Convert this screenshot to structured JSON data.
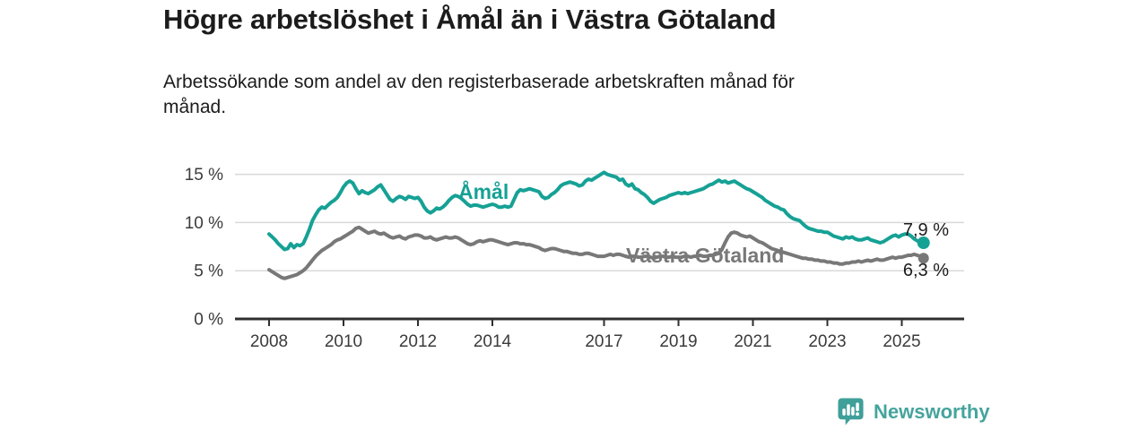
{
  "header": {
    "title": "Högre arbetslöshet i Åmål än i Västra Götaland",
    "subtitle": "Arbetssökande som andel av den registerbaserade arbetskraften månad för månad."
  },
  "footer": {
    "brand": "Newsworthy"
  },
  "colors": {
    "accent_teal": "#16a195",
    "series_gray": "#787878",
    "grid": "#d9d9d9",
    "axis": "#2f2f2f",
    "axis_text": "#3b3b3b",
    "text_dark": "#1c1c1c",
    "logo_teal": "#45a49d",
    "logo_icon": "#3f9f99"
  },
  "chart_data": {
    "type": "line",
    "title": "Högre arbetslöshet i Åmål än i Västra Götaland",
    "subtitle": "Arbetssökande som andel av den registerbaserade arbetskraften månad för månad.",
    "unit": "%",
    "frequency": "monthly",
    "x_start": "2008-01",
    "x_end": "2025-08",
    "x_ticks": [
      2008,
      2010,
      2012,
      2014,
      2017,
      2019,
      2021,
      2023,
      2025
    ],
    "y_ticks": [
      {
        "value": 0,
        "label": "0 %"
      },
      {
        "value": 5,
        "label": "5 %"
      },
      {
        "value": 10,
        "label": "10 %"
      },
      {
        "value": 15,
        "label": "15 %"
      }
    ],
    "ylim": [
      0,
      16
    ],
    "grid": "horizontal",
    "legend_position": "inline-labels",
    "series": [
      {
        "id": "amal",
        "name": "Åmål",
        "color": "#16a195",
        "end_label": "7,9 %",
        "end_value": 7.9,
        "values": [
          8.8,
          8.5,
          8.2,
          7.8,
          7.5,
          7.2,
          7.3,
          7.8,
          7.4,
          7.7,
          7.6,
          7.8,
          8.5,
          9.3,
          10.2,
          10.8,
          11.3,
          11.6,
          11.5,
          11.8,
          12.1,
          12.3,
          12.6,
          13.1,
          13.7,
          14.1,
          14.3,
          14.1,
          13.5,
          13.0,
          13.3,
          13.1,
          13.0,
          13.2,
          13.4,
          13.7,
          13.9,
          13.4,
          12.9,
          12.4,
          12.2,
          12.5,
          12.7,
          12.6,
          12.4,
          12.7,
          12.6,
          12.5,
          12.6,
          12.2,
          11.6,
          11.2,
          11.0,
          11.2,
          11.5,
          11.4,
          11.6,
          11.9,
          12.3,
          12.6,
          12.8,
          12.7,
          12.5,
          12.2,
          11.9,
          11.7,
          11.8,
          11.8,
          11.7,
          11.6,
          11.7,
          11.8,
          11.9,
          11.8,
          11.6,
          11.6,
          11.7,
          11.6,
          11.7,
          12.4,
          13.1,
          13.4,
          13.3,
          13.4,
          13.5,
          13.4,
          13.3,
          13.2,
          12.7,
          12.5,
          12.6,
          12.9,
          13.1,
          13.4,
          13.8,
          14.0,
          14.1,
          14.2,
          14.1,
          14.0,
          13.8,
          13.9,
          14.3,
          14.5,
          14.4,
          14.6,
          14.8,
          15.0,
          15.2,
          15.0,
          14.9,
          14.8,
          14.7,
          14.4,
          14.5,
          14.0,
          13.8,
          14.0,
          13.5,
          13.4,
          13.1,
          12.9,
          12.6,
          12.2,
          12.0,
          12.2,
          12.4,
          12.5,
          12.6,
          12.8,
          12.9,
          13.0,
          13.1,
          13.0,
          13.1,
          13.0,
          13.1,
          13.2,
          13.3,
          13.4,
          13.5,
          13.7,
          13.9,
          14.0,
          14.2,
          14.4,
          14.2,
          14.3,
          14.1,
          14.2,
          14.3,
          14.1,
          13.9,
          13.7,
          13.5,
          13.4,
          13.2,
          13.0,
          12.8,
          12.6,
          12.3,
          12.1,
          11.9,
          11.7,
          11.6,
          11.4,
          11.3,
          10.9,
          10.6,
          10.4,
          10.3,
          10.2,
          9.9,
          9.6,
          9.4,
          9.3,
          9.2,
          9.1,
          9.1,
          9.0,
          9.0,
          8.8,
          8.6,
          8.5,
          8.4,
          8.3,
          8.5,
          8.4,
          8.5,
          8.3,
          8.2,
          8.2,
          8.3,
          8.4,
          8.2,
          8.1,
          8.0,
          7.9,
          8.0,
          8.2,
          8.4,
          8.6,
          8.7,
          8.5,
          8.7,
          8.8,
          8.8,
          8.6,
          8.3,
          8.1,
          8.0,
          7.9
        ]
      },
      {
        "id": "vastra_gotaland",
        "name": "Västra Götaland",
        "color": "#787878",
        "end_label": "6,3 %",
        "end_value": 6.3,
        "values": [
          5.1,
          4.9,
          4.7,
          4.5,
          4.3,
          4.2,
          4.3,
          4.4,
          4.5,
          4.6,
          4.8,
          5.0,
          5.3,
          5.7,
          6.1,
          6.5,
          6.8,
          7.1,
          7.3,
          7.5,
          7.7,
          8.0,
          8.2,
          8.3,
          8.5,
          8.7,
          8.9,
          9.1,
          9.4,
          9.5,
          9.3,
          9.1,
          8.9,
          9.0,
          9.1,
          8.9,
          8.8,
          8.9,
          8.7,
          8.5,
          8.4,
          8.5,
          8.6,
          8.4,
          8.3,
          8.5,
          8.6,
          8.7,
          8.7,
          8.6,
          8.4,
          8.4,
          8.5,
          8.3,
          8.2,
          8.3,
          8.4,
          8.5,
          8.4,
          8.4,
          8.5,
          8.4,
          8.2,
          8.0,
          7.8,
          7.7,
          7.8,
          8.0,
          8.1,
          8.0,
          8.1,
          8.2,
          8.2,
          8.1,
          8.0,
          7.9,
          7.8,
          7.7,
          7.8,
          7.9,
          7.9,
          7.8,
          7.8,
          7.7,
          7.7,
          7.6,
          7.5,
          7.4,
          7.2,
          7.1,
          7.2,
          7.3,
          7.3,
          7.2,
          7.1,
          7.0,
          7.0,
          6.9,
          6.8,
          6.8,
          6.7,
          6.7,
          6.8,
          6.8,
          6.7,
          6.6,
          6.5,
          6.5,
          6.5,
          6.6,
          6.7,
          6.6,
          6.7,
          6.7,
          6.6,
          6.5,
          6.4,
          6.5,
          6.5,
          6.4,
          6.4,
          6.5,
          6.5,
          6.4,
          6.3,
          6.4,
          6.5,
          6.5,
          6.4,
          6.4,
          6.5,
          6.4,
          6.4,
          6.4,
          6.5,
          6.5,
          6.4,
          6.5,
          6.5,
          6.6,
          6.5,
          6.5,
          6.6,
          6.6,
          6.7,
          6.8,
          7.2,
          7.9,
          8.5,
          8.9,
          9.0,
          8.9,
          8.7,
          8.6,
          8.5,
          8.6,
          8.4,
          8.2,
          8.0,
          7.9,
          7.7,
          7.5,
          7.3,
          7.2,
          7.1,
          7.0,
          6.9,
          6.8,
          6.7,
          6.6,
          6.5,
          6.4,
          6.3,
          6.3,
          6.2,
          6.2,
          6.1,
          6.1,
          6.0,
          6.0,
          5.9,
          5.9,
          5.8,
          5.8,
          5.7,
          5.7,
          5.8,
          5.8,
          5.9,
          5.9,
          6.0,
          5.9,
          6.0,
          6.1,
          6.0,
          6.1,
          6.2,
          6.1,
          6.1,
          6.2,
          6.3,
          6.4,
          6.3,
          6.4,
          6.4,
          6.5,
          6.6,
          6.6,
          6.7,
          6.6,
          6.5,
          6.3
        ]
      }
    ]
  }
}
